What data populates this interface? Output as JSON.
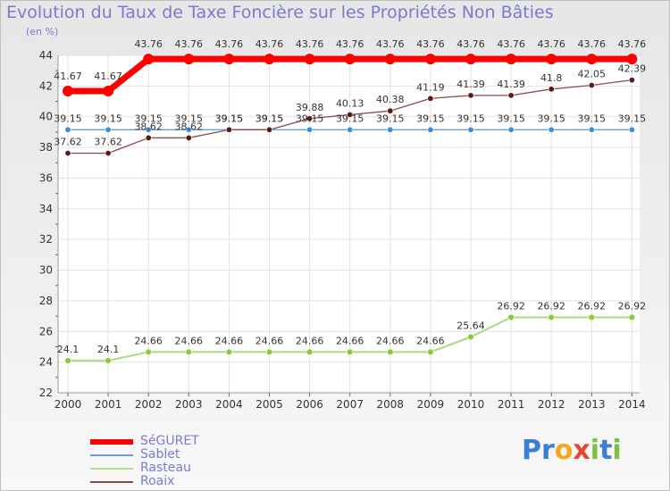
{
  "title": "Evolution du Taux de Taxe Foncière sur les Propriétés Non Bâties",
  "unit": "(en %)",
  "brand": {
    "letters": [
      "P",
      "r",
      "o",
      "x",
      "i",
      "t",
      "i"
    ],
    "colors": [
      "#3a7fd5",
      "#3a7fd5",
      "#f5a623",
      "#e04a2e",
      "#7ac043",
      "#3a7fd5",
      "#7ac043"
    ]
  },
  "chart_data": {
    "type": "line",
    "title": "Evolution du Taux de Taxe Foncière sur les Propriétés Non Bâties",
    "ylabel": "(en %)",
    "xlabel": "",
    "ylim": [
      22,
      44
    ],
    "yticks": [
      22,
      24,
      26,
      28,
      30,
      32,
      34,
      36,
      38,
      40,
      42,
      44
    ],
    "categories": [
      "2000",
      "2001",
      "2002",
      "2003",
      "2004",
      "2005",
      "2006",
      "2007",
      "2008",
      "2009",
      "2010",
      "2011",
      "2012",
      "2013",
      "2014"
    ],
    "grid": true,
    "series": [
      {
        "name": "SéGURET",
        "color": "#ff0000",
        "marker_color": "#ff0000",
        "values": [
          41.67,
          41.67,
          43.76,
          43.76,
          43.76,
          43.76,
          43.76,
          43.76,
          43.76,
          43.76,
          43.76,
          43.76,
          43.76,
          43.76,
          43.76
        ],
        "labels": [
          "41.67",
          "41.67",
          "43.76",
          "43.76",
          "43.76",
          "43.76",
          "43.76",
          "43.76",
          "43.76",
          "43.76",
          "43.76",
          "43.76",
          "43.76",
          "43.76",
          "43.76"
        ]
      },
      {
        "name": "Sablet",
        "color": "#6a9fd0",
        "marker_color": "#3b8fd6",
        "values": [
          39.15,
          39.15,
          39.15,
          39.15,
          39.15,
          39.15,
          39.15,
          39.15,
          39.15,
          39.15,
          39.15,
          39.15,
          39.15,
          39.15,
          39.15
        ],
        "labels": [
          "39.15",
          "39.15",
          "39.15",
          "39.15",
          "39.15",
          "39.15",
          "39.15",
          "39.15",
          "39.15",
          "39.15",
          "39.15",
          "39.15",
          "39.15",
          "39.15",
          "39.15"
        ]
      },
      {
        "name": "Rasteau",
        "color": "#b0dc8c",
        "marker_color": "#86cc3c",
        "values": [
          24.1,
          24.1,
          24.66,
          24.66,
          24.66,
          24.66,
          24.66,
          24.66,
          24.66,
          24.66,
          25.64,
          26.92,
          26.92,
          26.92,
          26.92
        ],
        "labels": [
          "24.1",
          "24.1",
          "24.66",
          "24.66",
          "24.66",
          "24.66",
          "24.66",
          "24.66",
          "24.66",
          "24.66",
          "25.64",
          "26.92",
          "26.92",
          "26.92",
          "26.92"
        ]
      },
      {
        "name": "Roaix",
        "color": "#8a4a4a",
        "marker_color": "#5a1a1a",
        "values": [
          37.62,
          37.62,
          38.62,
          38.62,
          39.15,
          39.15,
          39.88,
          40.13,
          40.38,
          41.19,
          41.39,
          41.39,
          41.8,
          42.05,
          42.39
        ],
        "labels": [
          "37.62",
          "37.62",
          "38.62",
          "38.62",
          "39.15",
          "39.15",
          "39.88",
          "40.13",
          "40.38",
          "41.19",
          "41.39",
          "41.39",
          "41.8",
          "42.05",
          "42.39"
        ]
      }
    ]
  }
}
